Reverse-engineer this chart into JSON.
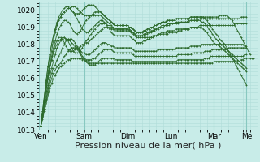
{
  "bg_color": "#c8ece8",
  "grid_color": "#b0ddd8",
  "line_color": "#2d6b2d",
  "marker": "+",
  "ylim": [
    1013,
    1020.5
  ],
  "yticks": [
    1013,
    1014,
    1015,
    1016,
    1017,
    1018,
    1019,
    1020
  ],
  "xlabel": "Pression niveau de la mer( hPa )",
  "xlabel_fontsize": 8,
  "tick_fontsize": 6.5,
  "day_labels": [
    "Ven",
    "Sam",
    "Dim",
    "Lun",
    "Mar",
    "Me"
  ],
  "day_positions": [
    0,
    24,
    48,
    72,
    96,
    114
  ],
  "xlim": [
    -1,
    120
  ],
  "series": [
    [
      1013.2,
      1013.6,
      1014.1,
      1014.5,
      1015.0,
      1015.4,
      1015.7,
      1016.0,
      1016.2,
      1016.4,
      1016.6,
      1016.7,
      1016.8,
      1016.9,
      1017.0,
      1017.1,
      1017.1,
      1017.2,
      1017.2,
      1017.2,
      1017.2,
      1017.2,
      1017.2,
      1017.1,
      1017.1,
      1017.0,
      1017.0,
      1016.9,
      1016.9,
      1016.9,
      1016.9,
      1016.9,
      1016.9,
      1016.9,
      1016.9,
      1016.9,
      1016.9,
      1016.9,
      1016.9,
      1016.9,
      1016.9,
      1016.9,
      1016.9,
      1016.9,
      1016.9,
      1016.9,
      1016.9,
      1016.9,
      1016.9,
      1016.9,
      1016.9,
      1016.9,
      1016.9,
      1016.9,
      1016.9,
      1016.9,
      1016.9,
      1016.9,
      1016.9,
      1016.9,
      1016.9,
      1016.9,
      1016.9,
      1016.9,
      1016.9,
      1016.9,
      1016.9,
      1016.9,
      1016.9,
      1016.9,
      1016.9,
      1016.9,
      1016.9,
      1016.9,
      1016.9,
      1016.9,
      1016.9,
      1016.9,
      1016.9,
      1016.9,
      1016.9,
      1016.9,
      1016.9,
      1016.9,
      1016.9,
      1016.9,
      1016.9,
      1016.9,
      1016.9,
      1016.9,
      1016.9,
      1016.9,
      1016.9,
      1016.9,
      1016.9,
      1016.9,
      1017.0,
      1017.0,
      1017.0,
      1017.0,
      1017.0,
      1017.0,
      1017.0,
      1017.0,
      1017.0,
      1017.0,
      1017.0,
      1017.0,
      1017.0,
      1017.0,
      1017.0,
      1017.1,
      1017.1,
      1017.2,
      1017.2,
      1017.2,
      1017.2,
      1017.2,
      1017.2
    ],
    [
      1013.2,
      1013.7,
      1014.2,
      1014.7,
      1015.2,
      1015.6,
      1016.0,
      1016.3,
      1016.5,
      1016.7,
      1016.8,
      1016.9,
      1017.1,
      1017.3,
      1017.4,
      1017.6,
      1017.7,
      1017.8,
      1017.8,
      1017.8,
      1017.7,
      1017.6,
      1017.4,
      1017.2,
      1017.1,
      1017.0,
      1016.9,
      1016.8,
      1016.8,
      1016.8,
      1016.8,
      1016.9,
      1017.0,
      1017.1,
      1017.2,
      1017.2,
      1017.2,
      1017.2,
      1017.2,
      1017.2,
      1017.2,
      1017.1,
      1017.1,
      1017.1,
      1017.1,
      1017.1,
      1017.1,
      1017.1,
      1017.1,
      1017.1,
      1017.1,
      1017.0,
      1017.0,
      1017.0,
      1017.0,
      1017.0,
      1017.0,
      1017.0,
      1017.0,
      1017.0,
      1017.0,
      1017.0,
      1017.0,
      1017.0,
      1017.0,
      1017.0,
      1017.0,
      1017.0,
      1017.0,
      1017.0,
      1017.0,
      1017.0,
      1017.0,
      1017.0,
      1017.0,
      1017.0,
      1017.1,
      1017.1,
      1017.1,
      1017.1,
      1017.1,
      1017.1,
      1017.1,
      1017.1,
      1017.1,
      1017.1,
      1017.1,
      1017.1,
      1017.1,
      1017.1,
      1017.1,
      1017.2,
      1017.2,
      1017.2,
      1017.3,
      1017.3,
      1017.3,
      1017.3,
      1017.3,
      1017.3,
      1017.3,
      1017.3,
      1017.3,
      1017.3,
      1017.3,
      1017.3,
      1017.3,
      1017.3,
      1017.3,
      1017.3,
      1017.3,
      1017.3,
      1017.3,
      1017.4,
      1017.4
    ],
    [
      1013.2,
      1013.7,
      1014.2,
      1014.8,
      1015.4,
      1015.9,
      1016.3,
      1016.6,
      1016.8,
      1017.1,
      1017.3,
      1017.5,
      1017.8,
      1018.0,
      1018.2,
      1018.3,
      1018.3,
      1018.3,
      1018.2,
      1018.1,
      1017.9,
      1017.7,
      1017.5,
      1017.3,
      1017.2,
      1017.1,
      1017.1,
      1017.1,
      1017.1,
      1017.2,
      1017.2,
      1017.3,
      1017.4,
      1017.5,
      1017.6,
      1017.7,
      1017.7,
      1017.7,
      1017.7,
      1017.7,
      1017.6,
      1017.5,
      1017.5,
      1017.5,
      1017.5,
      1017.5,
      1017.5,
      1017.5,
      1017.5,
      1017.5,
      1017.5,
      1017.4,
      1017.3,
      1017.3,
      1017.3,
      1017.3,
      1017.3,
      1017.3,
      1017.3,
      1017.3,
      1017.3,
      1017.3,
      1017.3,
      1017.3,
      1017.3,
      1017.3,
      1017.3,
      1017.3,
      1017.3,
      1017.3,
      1017.3,
      1017.3,
      1017.3,
      1017.3,
      1017.3,
      1017.3,
      1017.4,
      1017.4,
      1017.4,
      1017.4,
      1017.4,
      1017.4,
      1017.4,
      1017.4,
      1017.5,
      1017.5,
      1017.5,
      1017.5,
      1017.5,
      1017.5,
      1017.5,
      1017.6,
      1017.6,
      1017.6,
      1017.6,
      1017.7,
      1017.7,
      1017.7,
      1017.7,
      1017.7,
      1017.7,
      1017.7,
      1017.7,
      1017.7,
      1017.8,
      1017.8,
      1017.8,
      1017.8,
      1017.8,
      1017.8,
      1017.8,
      1017.8,
      1017.8,
      1017.8,
      1017.8
    ],
    [
      1013.2,
      1013.8,
      1014.4,
      1015.0,
      1015.6,
      1016.1,
      1016.6,
      1017.0,
      1017.4,
      1017.8,
      1018.0,
      1018.2,
      1018.3,
      1018.4,
      1018.3,
      1018.3,
      1018.2,
      1018.1,
      1018.0,
      1017.9,
      1017.8,
      1017.7,
      1017.6,
      1017.5,
      1017.5,
      1017.4,
      1017.4,
      1017.4,
      1017.5,
      1017.6,
      1017.7,
      1017.8,
      1017.9,
      1018.0,
      1018.1,
      1018.1,
      1018.1,
      1018.0,
      1018.0,
      1017.9,
      1017.9,
      1017.8,
      1017.8,
      1017.8,
      1017.8,
      1017.8,
      1017.8,
      1017.8,
      1017.8,
      1017.8,
      1017.8,
      1017.7,
      1017.6,
      1017.6,
      1017.6,
      1017.6,
      1017.6,
      1017.6,
      1017.6,
      1017.6,
      1017.6,
      1017.6,
      1017.6,
      1017.6,
      1017.6,
      1017.7,
      1017.7,
      1017.7,
      1017.7,
      1017.7,
      1017.7,
      1017.7,
      1017.7,
      1017.7,
      1017.7,
      1017.8,
      1017.8,
      1017.8,
      1017.8,
      1017.8,
      1017.8,
      1017.8,
      1017.8,
      1017.9,
      1017.9,
      1017.9,
      1017.9,
      1017.9,
      1017.9,
      1018.0,
      1018.0,
      1018.0,
      1018.0,
      1018.0,
      1018.0,
      1018.0,
      1018.0,
      1018.0,
      1018.0,
      1018.0,
      1018.0,
      1018.0,
      1018.0,
      1018.0,
      1018.0,
      1018.0,
      1018.0,
      1018.0,
      1018.0,
      1018.0,
      1018.0,
      1018.0,
      1018.0,
      1017.9,
      1017.9
    ],
    [
      1013.2,
      1013.9,
      1014.6,
      1015.3,
      1016.0,
      1016.6,
      1017.1,
      1017.6,
      1018.0,
      1018.2,
      1018.4,
      1018.4,
      1018.3,
      1018.1,
      1017.9,
      1017.7,
      1017.6,
      1017.6,
      1017.6,
      1017.7,
      1017.8,
      1017.8,
      1017.9,
      1018.0,
      1018.0,
      1018.1,
      1018.1,
      1018.2,
      1018.3,
      1018.4,
      1018.5,
      1018.6,
      1018.7,
      1018.8,
      1018.9,
      1019.0,
      1019.0,
      1019.0,
      1019.0,
      1018.9,
      1018.9,
      1018.8,
      1018.8,
      1018.8,
      1018.8,
      1018.8,
      1018.8,
      1018.8,
      1018.8,
      1018.8,
      1018.7,
      1018.6,
      1018.5,
      1018.4,
      1018.4,
      1018.4,
      1018.4,
      1018.4,
      1018.4,
      1018.4,
      1018.4,
      1018.4,
      1018.5,
      1018.5,
      1018.5,
      1018.6,
      1018.6,
      1018.6,
      1018.6,
      1018.6,
      1018.6,
      1018.7,
      1018.7,
      1018.7,
      1018.7,
      1018.7,
      1018.8,
      1018.8,
      1018.8,
      1018.9,
      1018.9,
      1018.9,
      1018.9,
      1019.0,
      1019.0,
      1019.0,
      1019.0,
      1019.0,
      1019.1,
      1019.1,
      1019.1,
      1019.1,
      1019.1,
      1019.1,
      1019.1,
      1019.1,
      1019.1,
      1019.1,
      1019.1,
      1019.1,
      1019.1,
      1019.1,
      1019.1,
      1019.1,
      1019.1,
      1019.1,
      1019.1,
      1019.1,
      1019.2,
      1019.2,
      1019.2,
      1019.2,
      1019.2,
      1019.2,
      1019.2
    ],
    [
      1013.2,
      1013.9,
      1014.6,
      1015.3,
      1016.0,
      1016.6,
      1017.1,
      1017.5,
      1017.8,
      1018.0,
      1018.2,
      1018.3,
      1018.4,
      1018.4,
      1018.3,
      1018.2,
      1018.0,
      1017.8,
      1017.6,
      1017.5,
      1017.5,
      1017.5,
      1017.6,
      1017.8,
      1018.0,
      1018.2,
      1018.3,
      1018.5,
      1018.6,
      1018.8,
      1018.9,
      1019.0,
      1019.1,
      1019.2,
      1019.2,
      1019.2,
      1019.2,
      1019.1,
      1019.1,
      1019.0,
      1019.0,
      1018.9,
      1018.9,
      1018.9,
      1018.9,
      1018.9,
      1018.9,
      1018.9,
      1018.9,
      1018.8,
      1018.8,
      1018.7,
      1018.6,
      1018.5,
      1018.5,
      1018.5,
      1018.5,
      1018.5,
      1018.6,
      1018.6,
      1018.7,
      1018.7,
      1018.8,
      1018.8,
      1018.9,
      1018.9,
      1019.0,
      1019.0,
      1019.0,
      1019.1,
      1019.1,
      1019.1,
      1019.2,
      1019.2,
      1019.2,
      1019.2,
      1019.2,
      1019.3,
      1019.3,
      1019.3,
      1019.3,
      1019.3,
      1019.4,
      1019.4,
      1019.4,
      1019.4,
      1019.4,
      1019.4,
      1019.5,
      1019.5,
      1019.5,
      1019.5,
      1019.5,
      1019.5,
      1019.5,
      1019.5,
      1019.5,
      1019.5,
      1019.5,
      1019.5,
      1019.5,
      1019.5,
      1019.5,
      1019.5,
      1019.5,
      1019.5,
      1019.5,
      1019.5,
      1019.5,
      1019.5,
      1019.5,
      1019.6,
      1019.6,
      1019.6,
      1019.6
    ],
    [
      1013.2,
      1014.0,
      1014.8,
      1015.5,
      1016.2,
      1016.8,
      1017.3,
      1017.8,
      1018.2,
      1018.6,
      1018.9,
      1019.1,
      1019.3,
      1019.4,
      1019.4,
      1019.3,
      1019.2,
      1019.0,
      1018.8,
      1018.7,
      1018.6,
      1018.7,
      1018.8,
      1019.0,
      1019.2,
      1019.4,
      1019.5,
      1019.6,
      1019.7,
      1019.8,
      1019.9,
      1019.9,
      1019.9,
      1019.9,
      1019.8,
      1019.7,
      1019.6,
      1019.5,
      1019.4,
      1019.3,
      1019.2,
      1019.1,
      1019.1,
      1019.1,
      1019.1,
      1019.1,
      1019.1,
      1019.1,
      1019.1,
      1019.0,
      1019.0,
      1018.9,
      1018.8,
      1018.7,
      1018.7,
      1018.7,
      1018.7,
      1018.8,
      1018.8,
      1018.9,
      1018.9,
      1019.0,
      1019.0,
      1019.1,
      1019.1,
      1019.2,
      1019.2,
      1019.3,
      1019.3,
      1019.3,
      1019.4,
      1019.4,
      1019.4,
      1019.4,
      1019.4,
      1019.5,
      1019.5,
      1019.5,
      1019.5,
      1019.5,
      1019.5,
      1019.5,
      1019.5,
      1019.6,
      1019.6,
      1019.6,
      1019.6,
      1019.6,
      1019.6,
      1019.6,
      1019.6,
      1019.6,
      1019.6,
      1019.6,
      1019.6,
      1019.6,
      1019.6,
      1019.6,
      1019.6,
      1019.7,
      1019.7,
      1019.7,
      1019.7,
      1019.7,
      1019.6,
      1019.5,
      1019.4,
      1019.2,
      1019.0,
      1018.8,
      1018.6,
      1018.4,
      1018.2,
      1018.0,
      1017.8,
      1017.6,
      1017.4
    ],
    [
      1013.2,
      1014.0,
      1014.8,
      1015.6,
      1016.3,
      1017.0,
      1017.6,
      1018.2,
      1018.7,
      1019.1,
      1019.4,
      1019.6,
      1019.8,
      1019.9,
      1020.0,
      1020.1,
      1020.1,
      1020.0,
      1019.9,
      1019.7,
      1019.5,
      1019.3,
      1019.1,
      1018.9,
      1018.8,
      1018.7,
      1018.7,
      1018.8,
      1018.9,
      1019.0,
      1019.1,
      1019.2,
      1019.3,
      1019.4,
      1019.4,
      1019.3,
      1019.2,
      1019.0,
      1018.9,
      1018.7,
      1018.6,
      1018.5,
      1018.5,
      1018.5,
      1018.5,
      1018.5,
      1018.5,
      1018.5,
      1018.5,
      1018.5,
      1018.4,
      1018.3,
      1018.2,
      1018.1,
      1018.1,
      1018.1,
      1018.1,
      1018.2,
      1018.2,
      1018.3,
      1018.3,
      1018.4,
      1018.4,
      1018.5,
      1018.5,
      1018.6,
      1018.6,
      1018.7,
      1018.7,
      1018.7,
      1018.8,
      1018.8,
      1018.8,
      1018.8,
      1018.8,
      1018.9,
      1018.9,
      1018.9,
      1018.9,
      1018.9,
      1018.9,
      1018.9,
      1018.9,
      1019.0,
      1019.0,
      1019.0,
      1019.0,
      1019.0,
      1019.0,
      1019.0,
      1018.9,
      1018.8,
      1018.7,
      1018.5,
      1018.4,
      1018.2,
      1018.1,
      1018.0,
      1018.0,
      1017.9,
      1017.8,
      1017.7,
      1017.6,
      1017.5,
      1017.4,
      1017.3,
      1017.2,
      1017.1,
      1017.0,
      1016.9,
      1016.8,
      1016.7,
      1016.6,
      1016.5,
      1016.4
    ],
    [
      1013.2,
      1014.1,
      1015.0,
      1015.9,
      1016.7,
      1017.4,
      1018.0,
      1018.5,
      1018.9,
      1019.2,
      1019.4,
      1019.6,
      1019.8,
      1019.9,
      1020.0,
      1020.1,
      1020.1,
      1020.2,
      1020.2,
      1020.2,
      1020.1,
      1020.0,
      1019.9,
      1019.8,
      1019.7,
      1019.7,
      1019.7,
      1019.7,
      1019.7,
      1019.7,
      1019.7,
      1019.7,
      1019.7,
      1019.7,
      1019.6,
      1019.5,
      1019.4,
      1019.3,
      1019.2,
      1019.1,
      1019.0,
      1018.9,
      1018.9,
      1018.9,
      1018.9,
      1018.9,
      1018.9,
      1018.9,
      1018.9,
      1018.9,
      1018.8,
      1018.7,
      1018.6,
      1018.5,
      1018.5,
      1018.5,
      1018.5,
      1018.6,
      1018.6,
      1018.7,
      1018.7,
      1018.8,
      1018.8,
      1018.9,
      1018.9,
      1019.0,
      1019.0,
      1019.1,
      1019.1,
      1019.1,
      1019.2,
      1019.2,
      1019.2,
      1019.2,
      1019.2,
      1019.3,
      1019.3,
      1019.3,
      1019.3,
      1019.3,
      1019.3,
      1019.3,
      1019.3,
      1019.4,
      1019.4,
      1019.4,
      1019.4,
      1019.4,
      1019.4,
      1019.3,
      1019.3,
      1019.2,
      1019.1,
      1018.9,
      1018.8,
      1018.6,
      1018.5,
      1018.3,
      1018.2,
      1018.1,
      1018.0,
      1017.9,
      1017.8,
      1017.7,
      1017.6,
      1017.5,
      1017.4,
      1017.3,
      1017.2,
      1017.1,
      1017.0,
      1016.9,
      1016.8,
      1016.7,
      1016.6
    ],
    [
      1013.2,
      1014.1,
      1015.0,
      1015.9,
      1016.7,
      1017.4,
      1018.0,
      1018.5,
      1018.9,
      1019.3,
      1019.6,
      1019.8,
      1020.0,
      1020.1,
      1020.2,
      1020.2,
      1020.1,
      1020.0,
      1019.9,
      1019.8,
      1019.8,
      1019.8,
      1019.9,
      1020.0,
      1020.1,
      1020.2,
      1020.3,
      1020.3,
      1020.3,
      1020.3,
      1020.2,
      1020.1,
      1020.0,
      1019.9,
      1019.8,
      1019.7,
      1019.6,
      1019.5,
      1019.4,
      1019.3,
      1019.2,
      1019.1,
      1019.1,
      1019.1,
      1019.1,
      1019.1,
      1019.1,
      1019.1,
      1019.1,
      1019.0,
      1019.0,
      1018.9,
      1018.8,
      1018.7,
      1018.7,
      1018.7,
      1018.7,
      1018.8,
      1018.8,
      1018.9,
      1018.9,
      1019.0,
      1019.0,
      1019.1,
      1019.1,
      1019.2,
      1019.2,
      1019.3,
      1019.3,
      1019.3,
      1019.4,
      1019.4,
      1019.4,
      1019.4,
      1019.4,
      1019.5,
      1019.5,
      1019.5,
      1019.5,
      1019.5,
      1019.5,
      1019.5,
      1019.5,
      1019.6,
      1019.6,
      1019.6,
      1019.6,
      1019.6,
      1019.6,
      1019.6,
      1019.6,
      1019.5,
      1019.4,
      1019.2,
      1019.1,
      1018.9,
      1018.8,
      1018.6,
      1018.5,
      1018.3,
      1018.2,
      1018.1,
      1018.0,
      1017.8,
      1017.6,
      1017.4,
      1017.2,
      1017.0,
      1016.8,
      1016.6,
      1016.4,
      1016.2,
      1016.0,
      1015.8,
      1015.6
    ]
  ]
}
